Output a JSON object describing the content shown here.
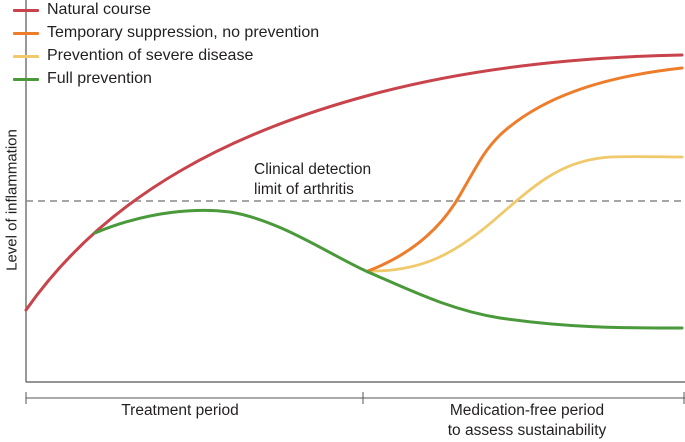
{
  "legend": [
    {
      "label": "Natural course",
      "color": "#c8434b",
      "icon": "line-swatch"
    },
    {
      "label": "Temporary suppression, no prevention",
      "color": "#ee7d2b",
      "icon": "line-swatch"
    },
    {
      "label": "Prevention of severe disease",
      "color": "#f0c96a",
      "icon": "line-swatch"
    },
    {
      "label": "Full prevention",
      "color": "#4a9a3b",
      "icon": "line-swatch"
    }
  ],
  "y_axis_label": "Level of inflammation",
  "threshold": {
    "line_1": "Clinical detection",
    "line_2": "limit of arthritis",
    "color": "#888888",
    "style": "dashed"
  },
  "periods": {
    "first": "Treatment period",
    "second_line_1": "Medication-free period",
    "second_line_2": "to assess sustainability"
  },
  "colors": {
    "axis": "#555555",
    "natural": "#c8434b",
    "temporary": "#ee7d2b",
    "severe": "#f0c96a",
    "full": "#4a9a3b"
  }
}
